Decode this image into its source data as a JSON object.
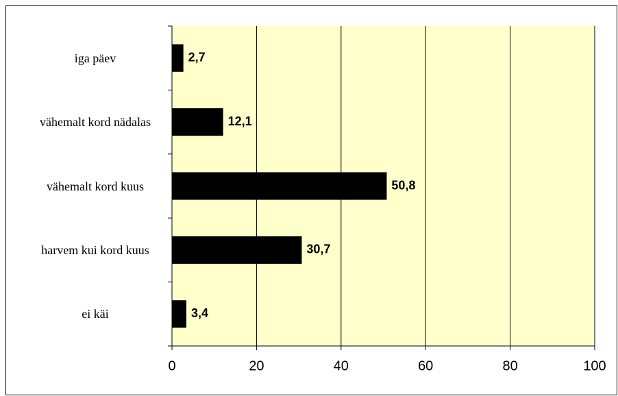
{
  "chart_data": {
    "type": "hbar",
    "categories": [
      "iga päev",
      "vähemalt kord nädalas",
      "vähemalt kord kuus",
      "harvem kui kord kuus",
      "ei käi"
    ],
    "values": [
      2.7,
      12.1,
      50.8,
      30.7,
      3.4
    ],
    "value_labels": [
      "2,7",
      "12,1",
      "50,8",
      "30,7",
      "3,4"
    ],
    "color": "#000000",
    "plot_background": "#ffffcc",
    "xlim": [
      0,
      100
    ],
    "xticks": [
      0,
      20,
      40,
      60,
      80,
      100
    ],
    "grid": true
  }
}
